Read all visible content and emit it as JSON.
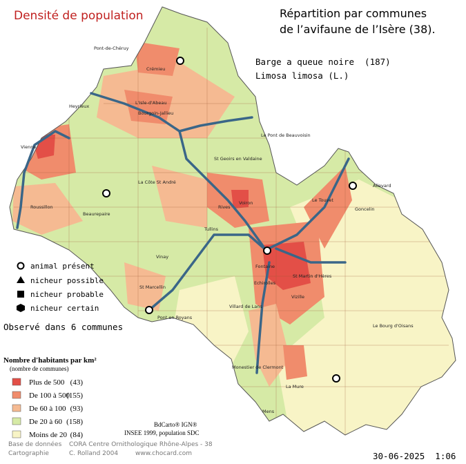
{
  "title": "Densité de population",
  "heading": [
    "Répartition par communes",
    "de l’avifaune de l’Isère (38)."
  ],
  "species": {
    "name": "Barge a queue noire  (187)",
    "latin": "Limosa limosa (L.)"
  },
  "symbol_legend": [
    "animal présent",
    "nicheur possible",
    "nicheur probable",
    "nicheur certain"
  ],
  "observed": "Observé dans 6 communes",
  "density_legend": {
    "title": "Nombre d'habitants par km²",
    "subtitle": "(nombre de communes)",
    "items": [
      {
        "label": "Plus de 500",
        "count": "(43)"
      },
      {
        "label": "De 100 à 500",
        "count": "(155)"
      },
      {
        "label": "De 60 à 100",
        "count": "(93)"
      },
      {
        "label": "De 20 à 60",
        "count": "(158)"
      },
      {
        "label": "Moins de 20",
        "count": "(84)"
      }
    ]
  },
  "sources": [
    "BdCarto® IGN®",
    "INSEE 1999, population SDC"
  ],
  "credits": {
    "database_label": "Base de données",
    "database": "CORA Centre Ornithologique Rhône-Alpes - 38",
    "cartography_label": "Cartographie",
    "cartographer": "C. Rolland 2004",
    "website": "www.chocard.com"
  },
  "date": "30-06-2025  1:06",
  "places": [
    "Pont-de-Chéruy",
    "Crémieu",
    "Heyrieux",
    "L'Isle-d'Abeau",
    "Bourgoin-Jallieu",
    "Le Pont de Beauvoisin",
    "Vienne",
    "St Geoirs en Valdaine",
    "Allevard",
    "Goncelin",
    "Le Touvet",
    "Roussillon",
    "Beaurepaire",
    "La Côte St André",
    "Voiron",
    "Rives",
    "Tullins",
    "Vinay",
    "St Marcellin",
    "Pont en Royans",
    "Fontaine",
    "Echirolles",
    "St Martin d'Hères",
    "Villard de Lans",
    "Vizille",
    "Monestier de Clermont",
    "La Mure",
    "Mens",
    "Le Bourg d'Oisans"
  ]
}
